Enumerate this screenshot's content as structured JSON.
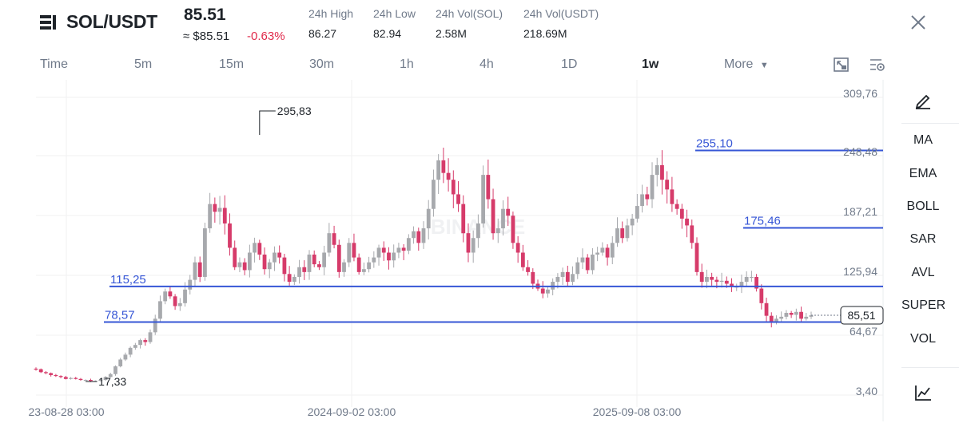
{
  "header": {
    "pair": "SOL/USDT",
    "price": "85.51",
    "price_approx": "≈ $85.51",
    "change": "-0.63%",
    "stats": [
      {
        "label": "24h High",
        "value": "86.27"
      },
      {
        "label": "24h Low",
        "value": "82.94"
      },
      {
        "label": "24h Vol(SOL)",
        "value": "2.58M"
      },
      {
        "label": "24h Vol(USDT)",
        "value": "218.69M"
      }
    ]
  },
  "intervals": [
    "Time",
    "5m",
    "15m",
    "30m",
    "1h",
    "4h",
    "1D",
    "1w",
    "More"
  ],
  "active_interval": "1w",
  "indicators": [
    "MA",
    "EMA",
    "BOLL",
    "SAR",
    "AVL",
    "SUPER",
    "VOL"
  ],
  "colors": {
    "up": "#a7a9ad",
    "down": "#d63b6a",
    "level_line": "#3656d6",
    "change_negative": "#e0294a"
  },
  "icons": {
    "logo": "exchange-logo-icon",
    "close": "close-icon",
    "expand": "fullscreen-icon",
    "settings": "chart-settings-icon",
    "draw": "pencil-icon",
    "chart_type": "line-chart-icon"
  },
  "chart_data": {
    "type": "candlestick",
    "symbol": "SOL/USDT",
    "interval": "1w",
    "y_axis_ticks": [
      "309,76",
      "248,48",
      "187,21",
      "125,94",
      "64,67",
      "3,40"
    ],
    "x_axis_ticks": [
      "23-08-28 03:00",
      "2024-09-02 03:00",
      "2025-09-08 03:00"
    ],
    "horizontal_levels": [
      {
        "value": 255.1,
        "label": "255,10"
      },
      {
        "value": 175.46,
        "label": "175,46"
      },
      {
        "value": 115.25,
        "label": "115,25"
      },
      {
        "value": 78.57,
        "label": "78,57"
      }
    ],
    "annotations": [
      {
        "label": "295,83",
        "value": 295.83,
        "kind": "high"
      },
      {
        "label": "17,33",
        "value": 17.33,
        "kind": "low"
      }
    ],
    "last_price": {
      "value": 85.51,
      "label": "85,51"
    },
    "watermark": "BINANCE",
    "ylim": [
      3.4,
      309.76
    ],
    "grid": true,
    "closes": [
      30,
      27,
      26,
      24,
      23,
      22,
      20,
      21,
      20,
      19,
      19,
      18,
      18,
      19,
      22,
      25,
      33,
      40,
      45,
      52,
      55,
      60,
      58,
      68,
      82,
      100,
      110,
      105,
      95,
      98,
      112,
      122,
      140,
      125,
      175,
      200,
      192,
      196,
      180,
      155,
      135,
      140,
      132,
      150,
      160,
      148,
      133,
      140,
      150,
      145,
      128,
      120,
      125,
      135,
      130,
      148,
      138,
      135,
      150,
      170,
      158,
      130,
      140,
      160,
      145,
      130,
      133,
      140,
      145,
      155,
      150,
      142,
      150,
      155,
      152,
      165,
      172,
      160,
      175,
      195,
      225,
      245,
      232,
      225,
      210,
      200,
      170,
      150,
      165,
      180,
      230,
      205,
      170,
      175,
      195,
      188,
      160,
      150,
      135,
      130,
      118,
      113,
      108,
      112,
      120,
      125,
      130,
      120,
      128,
      140,
      145,
      132,
      148,
      150,
      155,
      145,
      160,
      175,
      165,
      178,
      185,
      198,
      210,
      205,
      230,
      240,
      225,
      215,
      200,
      195,
      185,
      178,
      160,
      130,
      120,
      125,
      122,
      120,
      121,
      118,
      115,
      115,
      120,
      125,
      125,
      113,
      98,
      85,
      78,
      82,
      84,
      88,
      86,
      89,
      82,
      84,
      85.51
    ]
  }
}
